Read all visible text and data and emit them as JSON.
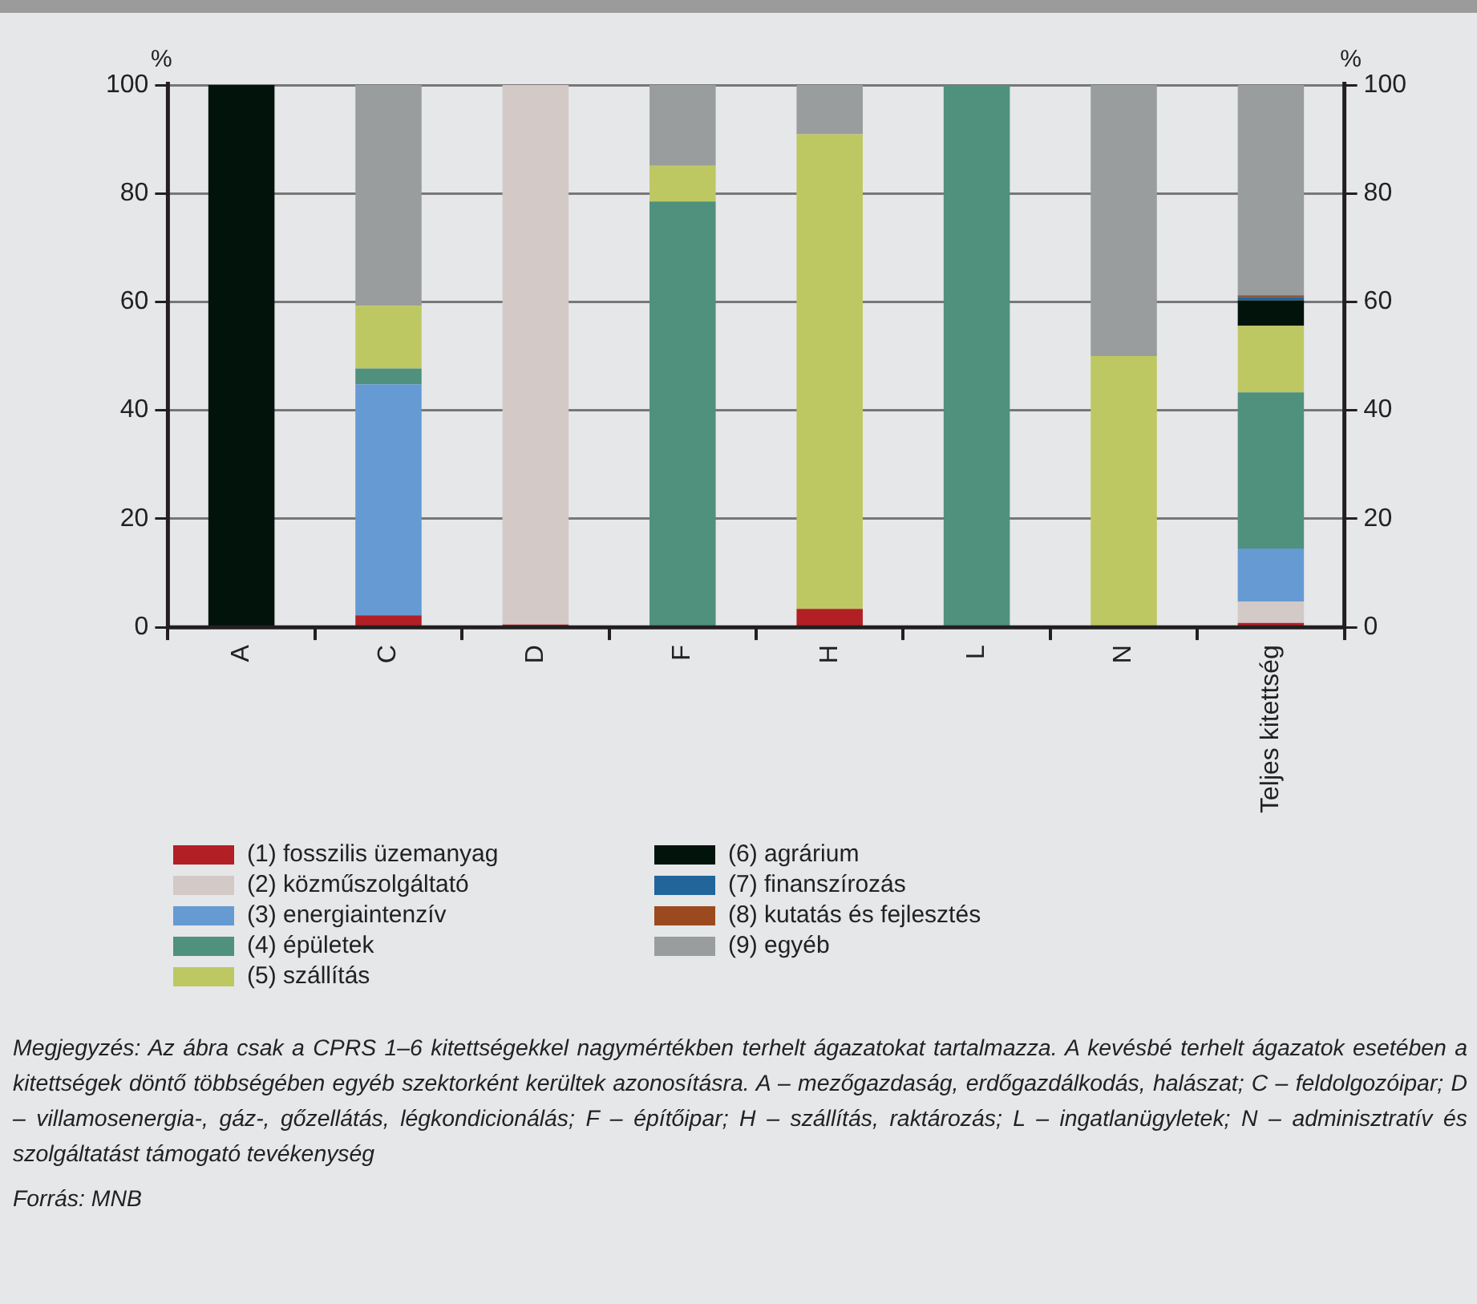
{
  "chart_data": {
    "type": "bar",
    "stacked": true,
    "ylabel": "%",
    "y2label": "%",
    "categories": [
      "A",
      "C",
      "D",
      "F",
      "H",
      "L",
      "N",
      "Teljes kitettség"
    ],
    "series": [
      {
        "name": "(1) fosszilis üzemanyag",
        "color": "#b22025",
        "values": [
          0,
          2.2,
          0.5,
          0,
          3.4,
          0,
          0,
          0.8
        ]
      },
      {
        "name": "(2) közműszolgáltató",
        "color": "#d3c9c7",
        "values": [
          0,
          0,
          99.5,
          0,
          0,
          0,
          0,
          3.9
        ]
      },
      {
        "name": "(3) energiaintenzív",
        "color": "#669ad3",
        "values": [
          0,
          42.6,
          0,
          0,
          0,
          0,
          0,
          9.8
        ]
      },
      {
        "name": "(4) épületek",
        "color": "#4f917d",
        "values": [
          0,
          2.9,
          0,
          78.5,
          0,
          100,
          0,
          28.8
        ]
      },
      {
        "name": "(5) szállítás",
        "color": "#bec862",
        "values": [
          0,
          11.6,
          0,
          6.6,
          87.5,
          0,
          50,
          12.3
        ]
      },
      {
        "name": "(6) agrárium",
        "color": "#01130b",
        "values": [
          100,
          0,
          0,
          0,
          0,
          0,
          0,
          4.7
        ]
      },
      {
        "name": "(7) finanszírozás",
        "color": "#22659a",
        "values": [
          0,
          0,
          0,
          0,
          0,
          0,
          0,
          0.6
        ]
      },
      {
        "name": "(8) kutatás és fejlesztés",
        "color": "#9b4a1f",
        "values": [
          0,
          0,
          0,
          0,
          0,
          0,
          0,
          0.3
        ]
      },
      {
        "name": "(9) egyéb",
        "color": "#9a9d9d",
        "values": [
          0,
          40.7,
          0,
          14.9,
          9.1,
          0,
          50,
          38.8
        ]
      }
    ],
    "ylim": [
      0,
      100
    ],
    "yticks": [
      0,
      20,
      40,
      60,
      80,
      100
    ],
    "y2lim": [
      0,
      100
    ],
    "y2ticks": [
      0,
      20,
      40,
      60,
      80,
      100
    ],
    "grid": "y",
    "legend": "bottom",
    "annotations": [
      "Megjegyzés: Az ábra csak a CPRS 1–6 kitettségekkel nagymértékben terhelt ágazatokat tartalmazza. A kevésbé terhelt ágazatok esetében a kitettségek döntő többségében egyéb szektorként kerültek azonosításra. A – mezőgazdaság, erdőgazdálkodás, halászat; C – feldolgozóipar; D – villamosenergia-, gáz-, gőzellátás, légkondicionálás; F – építőipar; H – szállítás, raktározás; L – ingatlanügyletek; N – adminisztratív és szolgáltatást támogató tevékenység",
      "Forrás: MNB"
    ]
  }
}
